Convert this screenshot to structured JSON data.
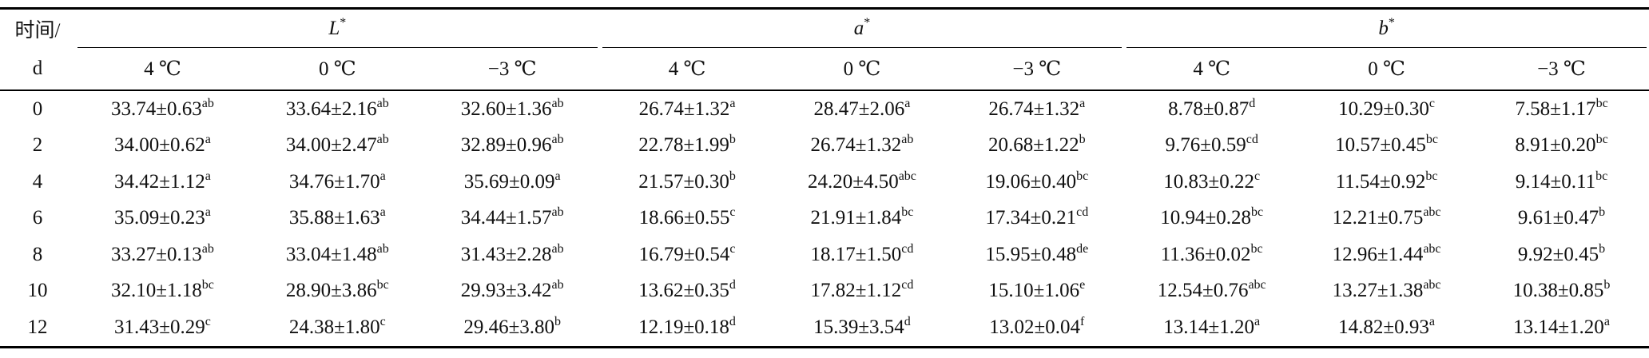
{
  "table": {
    "stub": [
      "时间/",
      "d"
    ],
    "groups": [
      {
        "letter": "L",
        "sup": "*",
        "temps": [
          "4 ℃",
          "0 ℃",
          "−3 ℃"
        ]
      },
      {
        "letter": "a",
        "sup": "*",
        "temps": [
          "4 ℃",
          "0 ℃",
          "−3 ℃"
        ]
      },
      {
        "letter": "b",
        "sup": "*",
        "temps": [
          "4 ℃",
          "0 ℃",
          "−3 ℃"
        ]
      }
    ],
    "rows": [
      {
        "time": "0",
        "cells": [
          [
            "33.74±0.63",
            "ab"
          ],
          [
            "33.64±2.16",
            "ab"
          ],
          [
            "32.60±1.36",
            "ab"
          ],
          [
            "26.74±1.32",
            "a"
          ],
          [
            "28.47±2.06",
            "a"
          ],
          [
            "26.74±1.32",
            "a"
          ],
          [
            "8.78±0.87",
            "d"
          ],
          [
            "10.29±0.30",
            "c"
          ],
          [
            "7.58±1.17",
            "bc"
          ]
        ]
      },
      {
        "time": "2",
        "cells": [
          [
            "34.00±0.62",
            "a"
          ],
          [
            "34.00±2.47",
            "ab"
          ],
          [
            "32.89±0.96",
            "ab"
          ],
          [
            "22.78±1.99",
            "b"
          ],
          [
            "26.74±1.32",
            "ab"
          ],
          [
            "20.68±1.22",
            "b"
          ],
          [
            "9.76±0.59",
            "cd"
          ],
          [
            "10.57±0.45",
            "bc"
          ],
          [
            "8.91±0.20",
            "bc"
          ]
        ]
      },
      {
        "time": "4",
        "cells": [
          [
            "34.42±1.12",
            "a"
          ],
          [
            "34.76±1.70",
            "a"
          ],
          [
            "35.69±0.09",
            "a"
          ],
          [
            "21.57±0.30",
            "b"
          ],
          [
            "24.20±4.50",
            "abc"
          ],
          [
            "19.06±0.40",
            "bc"
          ],
          [
            "10.83±0.22",
            "c"
          ],
          [
            "11.54±0.92",
            "bc"
          ],
          [
            "9.14±0.11",
            "bc"
          ]
        ]
      },
      {
        "time": "6",
        "cells": [
          [
            "35.09±0.23",
            "a"
          ],
          [
            "35.88±1.63",
            "a"
          ],
          [
            "34.44±1.57",
            "ab"
          ],
          [
            "18.66±0.55",
            "c"
          ],
          [
            "21.91±1.84",
            "bc"
          ],
          [
            "17.34±0.21",
            "cd"
          ],
          [
            "10.94±0.28",
            "bc"
          ],
          [
            "12.21±0.75",
            "abc"
          ],
          [
            "9.61±0.47",
            "b"
          ]
        ]
      },
      {
        "time": "8",
        "cells": [
          [
            "33.27±0.13",
            "ab"
          ],
          [
            "33.04±1.48",
            "ab"
          ],
          [
            "31.43±2.28",
            "ab"
          ],
          [
            "16.79±0.54",
            "c"
          ],
          [
            "18.17±1.50",
            "cd"
          ],
          [
            "15.95±0.48",
            "de"
          ],
          [
            "11.36±0.02",
            "bc"
          ],
          [
            "12.96±1.44",
            "abc"
          ],
          [
            "9.92±0.45",
            "b"
          ]
        ]
      },
      {
        "time": "10",
        "cells": [
          [
            "32.10±1.18",
            "bc"
          ],
          [
            "28.90±3.86",
            "bc"
          ],
          [
            "29.93±3.42",
            "ab"
          ],
          [
            "13.62±0.35",
            "d"
          ],
          [
            "17.82±1.12",
            "cd"
          ],
          [
            "15.10±1.06",
            "e"
          ],
          [
            "12.54±0.76",
            "abc"
          ],
          [
            "13.27±1.38",
            "abc"
          ],
          [
            "10.38±0.85",
            "b"
          ]
        ]
      },
      {
        "time": "12",
        "cells": [
          [
            "31.43±0.29",
            "c"
          ],
          [
            "24.38±1.80",
            "c"
          ],
          [
            "29.46±3.80",
            "b"
          ],
          [
            "12.19±0.18",
            "d"
          ],
          [
            "15.39±3.54",
            "d"
          ],
          [
            "13.02±0.04",
            "f"
          ],
          [
            "13.14±1.20",
            "a"
          ],
          [
            "14.82±0.93",
            "a"
          ],
          [
            "13.14±1.20",
            "a"
          ]
        ]
      }
    ]
  }
}
